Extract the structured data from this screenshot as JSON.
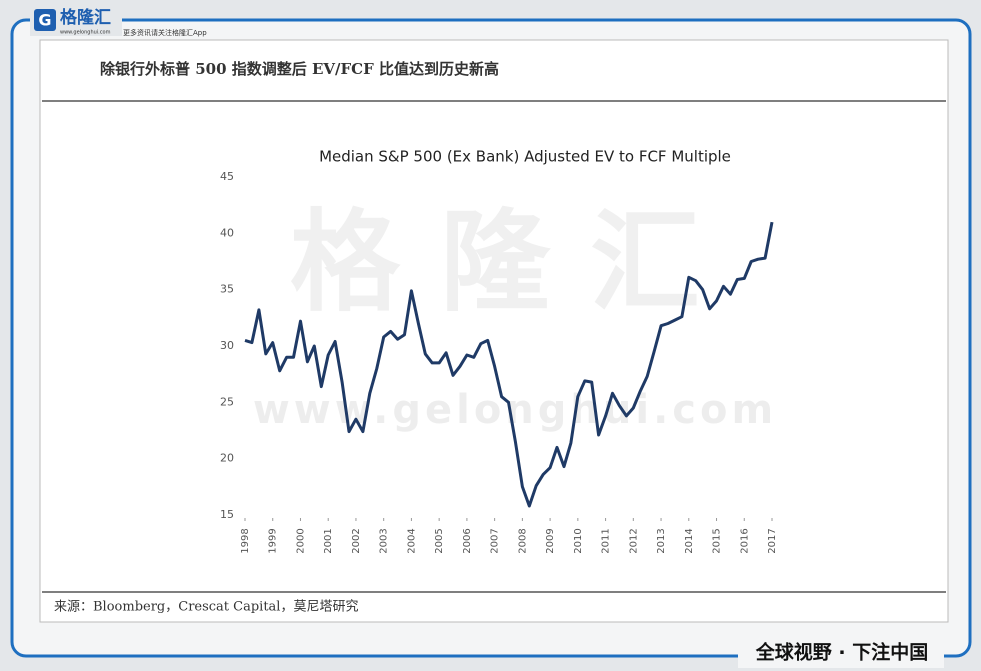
{
  "header": {
    "logo": "格隆汇",
    "url": "www.gelonghui.com",
    "tagline": "更多资讯请关注格隆汇App"
  },
  "panel_title": "除银行外标普 500 指数调整后 EV/FCF 比值达到历史新高",
  "watermark": {
    "name": "格隆汇",
    "url": "www.gelonghui.com"
  },
  "chart_data": {
    "type": "line",
    "title": "Median S&P 500 (Ex Bank) Adjusted EV to FCF Multiple",
    "x": [
      1998,
      1998.25,
      1998.5,
      1998.75,
      1999,
      1999.25,
      1999.5,
      1999.75,
      2000,
      2000.25,
      2000.5,
      2000.75,
      2001,
      2001.25,
      2001.5,
      2001.75,
      2002,
      2002.25,
      2002.5,
      2002.75,
      2003,
      2003.25,
      2003.5,
      2003.75,
      2004,
      2004.25,
      2004.5,
      2004.75,
      2005,
      2005.25,
      2005.5,
      2005.75,
      2006,
      2006.25,
      2006.5,
      2006.75,
      2007,
      2007.25,
      2007.5,
      2007.75,
      2008,
      2008.25,
      2008.5,
      2008.75,
      2009,
      2009.25,
      2009.5,
      2009.75,
      2010,
      2010.25,
      2010.5,
      2010.75,
      2011,
      2011.25,
      2011.5,
      2011.75,
      2012,
      2012.25,
      2012.5,
      2012.75,
      2013,
      2013.25,
      2013.5,
      2013.75,
      2014,
      2014.25,
      2014.5,
      2014.75,
      2015,
      2015.25,
      2015.5,
      2015.75,
      2016,
      2016.25,
      2016.5,
      2016.75,
      2017
    ],
    "values": [
      30.5,
      30.3,
      33.2,
      29.3,
      30.3,
      27.8,
      29.0,
      29.0,
      32.2,
      28.6,
      30.0,
      26.4,
      29.2,
      30.4,
      26.8,
      22.4,
      23.5,
      22.4,
      25.8,
      28.0,
      30.8,
      31.3,
      30.6,
      31.0,
      34.9,
      32.0,
      29.3,
      28.5,
      28.5,
      29.4,
      27.4,
      28.2,
      29.2,
      29.0,
      30.2,
      30.5,
      28.2,
      25.5,
      25.0,
      21.5,
      17.5,
      15.8,
      17.6,
      18.6,
      19.2,
      21.0,
      19.3,
      21.4,
      25.5,
      26.9,
      26.8,
      22.1,
      23.8,
      25.8,
      24.7,
      23.8,
      24.5,
      26.0,
      27.3,
      29.5,
      31.8,
      32.0,
      32.3,
      32.6,
      36.1,
      35.8,
      35.0,
      33.3,
      34.0,
      35.3,
      34.6,
      35.9,
      36.0,
      37.5,
      37.7,
      37.8,
      41.0
    ],
    "color": "#1f3a66",
    "xlim": [
      1998,
      2017
    ],
    "xticks": [
      1998,
      1999,
      2000,
      2001,
      2002,
      2003,
      2004,
      2005,
      2006,
      2007,
      2008,
      2009,
      2010,
      2011,
      2012,
      2013,
      2014,
      2015,
      2016,
      2017
    ],
    "ylim": [
      15,
      45
    ],
    "yticks": [
      15,
      20,
      25,
      30,
      35,
      40,
      45
    ],
    "grid": false
  },
  "source": "来源：Bloomberg，Crescat Capital，莫尼塔研究",
  "slogan": "全球视野 · 下注中国"
}
